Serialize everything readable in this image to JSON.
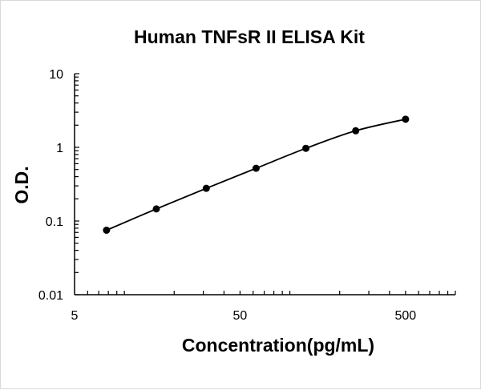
{
  "chart_data": {
    "type": "line",
    "title": "Human TNFsR II ELISA Kit",
    "xlabel": "Concentration(pg/mL)",
    "ylabel": "O.D.",
    "x_scale": "log",
    "y_scale": "log",
    "xlim": [
      5,
      1000
    ],
    "ylim": [
      0.01,
      10
    ],
    "x_tick_labels": [
      "5",
      "50",
      "500"
    ],
    "x_tick_values": [
      5,
      50,
      500
    ],
    "y_tick_labels": [
      "0.01",
      "0.1",
      "1",
      "10"
    ],
    "y_tick_values": [
      0.01,
      0.1,
      1,
      10
    ],
    "grid": false,
    "legend": "none",
    "markers": "filled-circle",
    "color": "#000000",
    "series": [
      {
        "x": [
          7.8,
          15.6,
          31.25,
          62.5,
          125,
          250,
          500
        ],
        "y": [
          0.075,
          0.146,
          0.278,
          0.52,
          0.97,
          1.68,
          2.41
        ]
      }
    ]
  }
}
